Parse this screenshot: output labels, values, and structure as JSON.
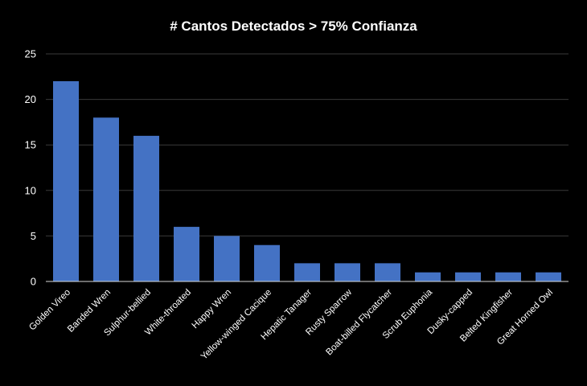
{
  "chart_data": {
    "type": "bar",
    "title": "# Cantos Detectados > 75% Confianza",
    "xlabel": "",
    "ylabel": "",
    "categories": [
      "Golden Vireo",
      "Banded Wren",
      "Sulphur-bellied",
      "White-throated",
      "Happy Wren",
      "Yellow-winged Cacique",
      "Hepatic Tanager",
      "Rusty Sparrow",
      "Boat-billed Flycatcher",
      "Scrub Euphonia",
      "Dusky-capped",
      "Belted Kingfisher",
      "Great Horned Owl"
    ],
    "values": [
      22,
      18,
      16,
      6,
      5,
      4,
      2,
      2,
      2,
      1,
      1,
      1,
      1
    ],
    "ylim": [
      0,
      25
    ],
    "yticks": [
      0,
      5,
      10,
      15,
      20,
      25
    ],
    "grid": true,
    "legend": "none",
    "colors": {
      "bar": "#4472c4",
      "background": "#000000",
      "text": "#ffffff",
      "gridline": "#3a3a3a",
      "axis": "#d9d9d9"
    }
  }
}
